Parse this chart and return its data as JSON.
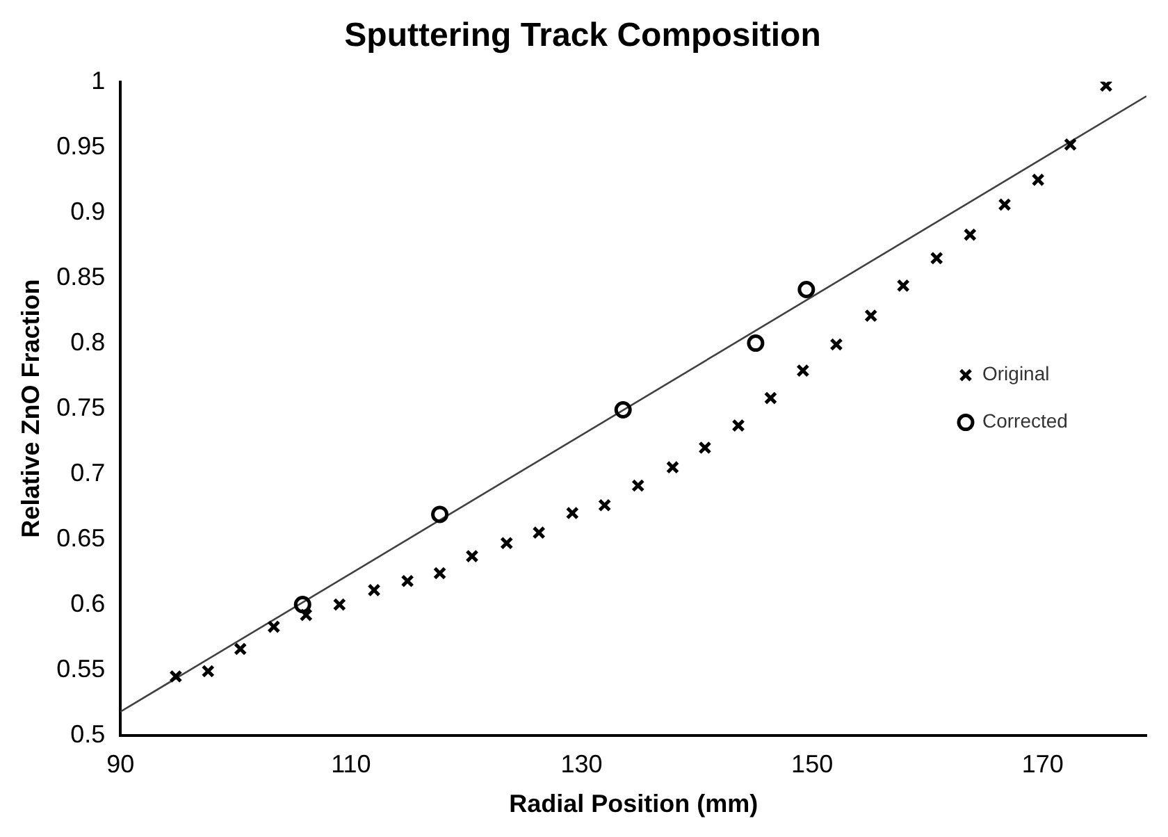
{
  "chart_data": {
    "type": "scatter",
    "title": "Sputtering Track Composition",
    "xlabel": "Radial Position (mm)",
    "ylabel": "Relative ZnO Fraction",
    "xlim": [
      90,
      179
    ],
    "xticks": [
      90,
      110,
      130,
      150,
      170
    ],
    "ylim": [
      0.5,
      1
    ],
    "yticks": [
      0.5,
      0.55,
      0.6,
      0.65,
      0.7,
      0.75,
      0.8,
      0.85,
      0.9,
      0.95,
      1
    ],
    "grid": false,
    "legend": "right",
    "series": [
      {
        "name": "Original",
        "color": "#000000",
        "marker": "cross",
        "x": [
          94.8,
          97.6,
          100.4,
          103.3,
          106.1,
          109.0,
          112.0,
          114.9,
          117.7,
          120.5,
          123.5,
          126.3,
          129.2,
          132.0,
          134.9,
          137.9,
          140.7,
          143.6,
          146.4,
          149.2,
          152.1,
          155.1,
          157.9,
          160.8,
          163.7,
          166.7,
          169.6,
          172.4,
          175.5
        ],
        "values": [
          0.545,
          0.549,
          0.566,
          0.583,
          0.592,
          0.6,
          0.611,
          0.618,
          0.624,
          0.637,
          0.647,
          0.655,
          0.67,
          0.676,
          0.691,
          0.705,
          0.72,
          0.737,
          0.758,
          0.779,
          0.799,
          0.821,
          0.844,
          0.865,
          0.883,
          0.906,
          0.925,
          0.952,
          0.997
        ]
      },
      {
        "name": "Corrected",
        "color": "#000000",
        "marker": "circle",
        "x": [
          105.8,
          117.7,
          133.6,
          145.1,
          149.5
        ],
        "values": [
          0.6,
          0.669,
          0.749,
          0.8,
          0.841
        ]
      },
      {
        "type": "line",
        "color": "#404040",
        "marker": "none",
        "line_style": "solid",
        "x": [
          90,
          179
        ],
        "values": [
          0.518,
          0.989
        ]
      }
    ]
  }
}
